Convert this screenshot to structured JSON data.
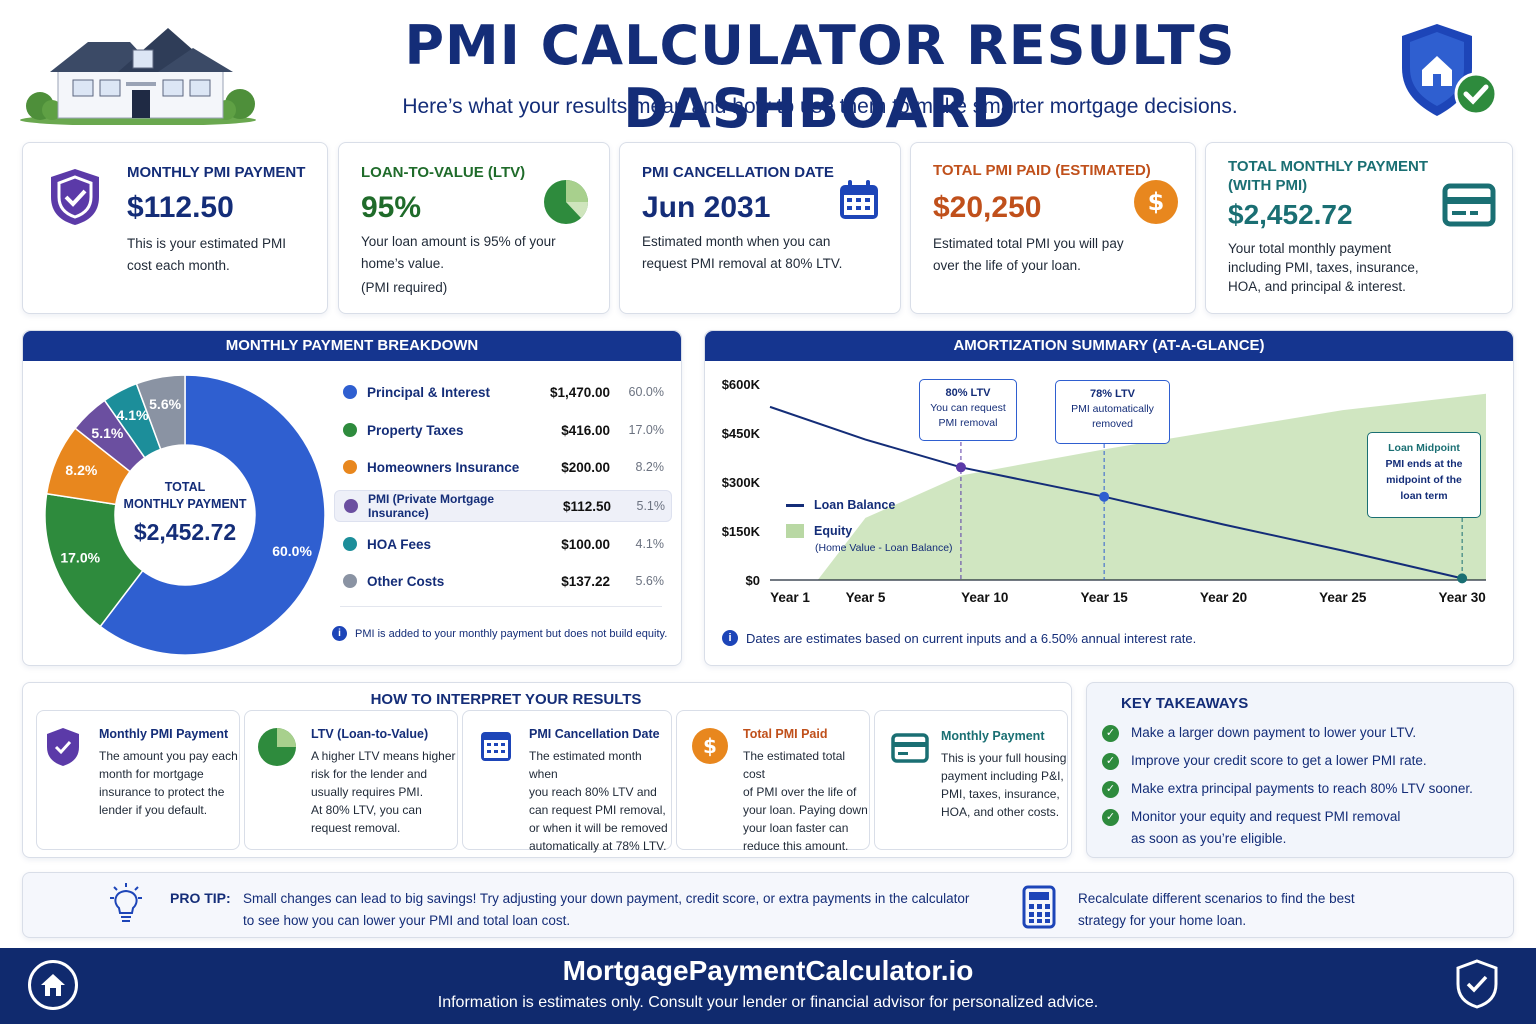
{
  "header": {
    "title": "PMI CALCULATOR RESULTS DASHBOARD",
    "subtitle": "Here’s what your results mean and how to use them to make smarter mortgage decisions."
  },
  "colors": {
    "navy": "#142d78",
    "header_bar": "#15358f",
    "principal": "#2f5fd0",
    "taxes": "#2e8b3d",
    "insurance": "#e8871e",
    "pmi": "#6b4fa0",
    "hoa": "#1c8e9a",
    "other": "#8a93a3",
    "equity_fill": "#b9d8a4"
  },
  "kpis": [
    {
      "label": "MONTHLY PMI PAYMENT",
      "value": "$112.50",
      "desc": [
        "This is your estimated PMI",
        "cost each month."
      ],
      "color": "#142d78",
      "icon": "shield-check-icon"
    },
    {
      "label": "LOAN-TO-VALUE (LTV)",
      "value": "95%",
      "desc": [
        "Your loan amount is 95% of your",
        "home’s value.",
        "(PMI required)"
      ],
      "color": "#1f6b2a",
      "icon": "pie-chart-icon"
    },
    {
      "label": "PMI CANCELLATION DATE",
      "value": "Jun 2031",
      "desc": [
        "Estimated month when you can",
        "request PMI removal at 80% LTV."
      ],
      "color": "#142d78",
      "icon": "calendar-icon"
    },
    {
      "label": "TOTAL PMI PAID (ESTIMATED)",
      "value": "$20,250",
      "desc": [
        "Estimated total PMI you will pay",
        "over the life of your loan."
      ],
      "color": "#c0501b",
      "icon": "dollar-coin-icon"
    },
    {
      "label": "TOTAL MONTHLY PAYMENT (WITH PMI)",
      "value": "$2,452.72",
      "desc": [
        "Your total monthly payment",
        "including PMI, taxes, insurance,",
        "HOA, and principal & interest."
      ],
      "color": "#1a6f73",
      "icon": "credit-card-icon"
    }
  ],
  "breakdown": {
    "header": "MONTHLY PAYMENT BREAKDOWN",
    "center_label_1": "TOTAL",
    "center_label_2": "MONTHLY PAYMENT",
    "center_value": "$2,452.72",
    "note": "PMI is added to your monthly payment but does not build equity."
  },
  "amortization": {
    "header": "AMORTIZATION SUMMARY (AT-A-GLANCE)",
    "legend_balance": "Loan Balance",
    "legend_equity": "Equity",
    "legend_equity_sub": "(Home Value - Loan Balance)",
    "callout_80": {
      "title": "80% LTV",
      "line1": "You can request",
      "line2": "PMI removal"
    },
    "callout_78": {
      "title": "78% LTV",
      "line1": "PMI automatically",
      "line2": "removed"
    },
    "callout_mid": {
      "title": "Loan Midpoint",
      "line1": "PMI ends at the",
      "line2": "midpoint of the",
      "line3": "loan term"
    },
    "note": "Dates are estimates based on current inputs and a 6.50% annual interest rate."
  },
  "chart_data": [
    {
      "type": "pie",
      "title": "MONTHLY PAYMENT BREAKDOWN",
      "categories": [
        "Principal & Interest",
        "Property Taxes",
        "Homeowners Insurance",
        "PMI (Private Mortgage Insurance)",
        "HOA Fees",
        "Other Costs"
      ],
      "values": [
        1470.0,
        416.0,
        200.0,
        112.5,
        100.0,
        137.22
      ],
      "value_labels": [
        "$1,470.00",
        "$416.00",
        "$200.00",
        "$112.50",
        "$100.00",
        "$137.22"
      ],
      "percentages": [
        60.0,
        17.0,
        8.2,
        5.1,
        4.1,
        5.6
      ],
      "percent_labels": [
        "60.0%",
        "17.0%",
        "8.2%",
        "5.1%",
        "4.1%",
        "5.6%"
      ],
      "colors": [
        "#2f5fd0",
        "#2e8b3d",
        "#e8871e",
        "#6b4fa0",
        "#1c8e9a",
        "#8a93a3"
      ]
    },
    {
      "type": "line",
      "title": "AMORTIZATION SUMMARY (AT-A-GLANCE)",
      "x_ticks": [
        "Year 1",
        "Year 5",
        "Year 10",
        "Year 15",
        "Year 20",
        "Year 25",
        "Year 30"
      ],
      "y_ticks": [
        "$600K",
        "$450K",
        "$300K",
        "$150K",
        "$0"
      ],
      "ylim": [
        0,
        600000
      ],
      "xlim": [
        1,
        31
      ],
      "series": [
        {
          "name": "Loan Balance",
          "type": "line",
          "x": [
            1,
            5,
            9,
            15,
            20,
            25,
            30
          ],
          "y": [
            530000,
            430000,
            345000,
            255000,
            170000,
            90000,
            5000
          ]
        },
        {
          "name": "Equity",
          "type": "area",
          "x": [
            3,
            5,
            9,
            15,
            20,
            25,
            31
          ],
          "y": [
            0,
            190000,
            320000,
            400000,
            460000,
            520000,
            570000
          ]
        }
      ],
      "markers": [
        {
          "label": "80% LTV",
          "x": 9,
          "y": 345000
        },
        {
          "label": "78% LTV",
          "x": 15,
          "y": 255000
        },
        {
          "label": "Loan Midpoint",
          "x": 30,
          "y": 5000
        }
      ],
      "grid": false,
      "legend": "left"
    }
  ],
  "interpret": {
    "header": "HOW TO INTERPRET YOUR RESULTS",
    "items": [
      {
        "title": "Monthly PMI Payment",
        "lines": [
          "The amount you pay each",
          "month for mortgage",
          "insurance to protect the",
          "lender if you default."
        ],
        "title_color": "#142d78",
        "icon": "shield-check-icon"
      },
      {
        "title": "LTV (Loan-to-Value)",
        "lines": [
          "A higher LTV means higher",
          "risk for the lender and",
          "usually requires PMI.",
          "At 80% LTV, you can",
          "request removal."
        ],
        "title_color": "#142d78",
        "icon": "pie-chart-icon"
      },
      {
        "title": "PMI Cancellation Date",
        "lines": [
          "The estimated month when",
          "you reach 80% LTV and",
          "can request PMI removal,",
          "or when it will be removed",
          "automatically at 78% LTV."
        ],
        "title_color": "#142d78",
        "icon": "calendar-icon"
      },
      {
        "title": "Total PMI Paid",
        "lines": [
          "The estimated total cost",
          "of PMI over the life of",
          "your loan. Paying down",
          "your loan faster can",
          "reduce this amount."
        ],
        "title_color": "#c0501b",
        "icon": "dollar-coin-icon"
      },
      {
        "title": "Monthly Payment",
        "lines": [
          "This is your full housing",
          "payment including P&I,",
          "PMI, taxes, insurance,",
          "HOA, and other costs."
        ],
        "title_color": "#1a6f73",
        "icon": "credit-card-icon"
      }
    ]
  },
  "takeaways": {
    "header": "KEY TAKEAWAYS",
    "items": [
      [
        "Make a larger down payment to lower your LTV."
      ],
      [
        "Improve your credit score to get a lower PMI rate."
      ],
      [
        "Make extra principal payments to reach 80% LTV sooner."
      ],
      [
        "Monitor your equity and request PMI removal",
        "as soon as you’re eligible."
      ]
    ]
  },
  "protip": {
    "label": "PRO TIP:",
    "line1": "Small changes can lead to big savings! Try adjusting your down payment, credit score, or extra payments in the calculator",
    "line2": "to see how you can lower your PMI and total loan cost.",
    "right_line1": "Recalculate different scenarios to find the best",
    "right_line2": "strategy for your home loan."
  },
  "footer": {
    "site": "MortgagePaymentCalculator.io",
    "disclaimer": "Information is estimates only. Consult your lender or financial advisor for personalized advice."
  }
}
